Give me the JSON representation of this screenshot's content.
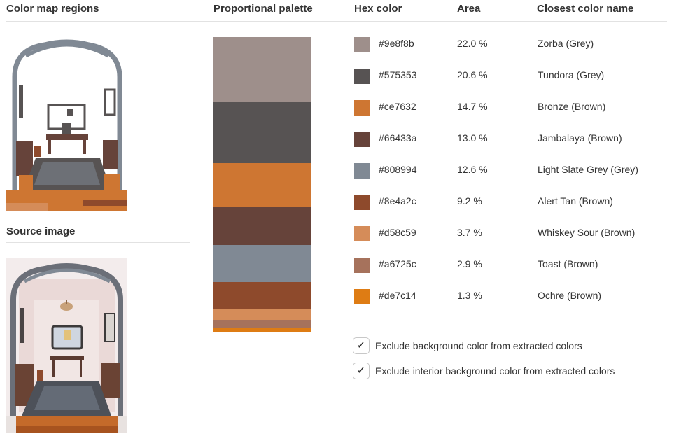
{
  "headers": {
    "color_map": "Color map regions",
    "source": "Source image",
    "palette": "Proportional palette",
    "hex": "Hex color",
    "area": "Area",
    "name": "Closest color name"
  },
  "colors": [
    {
      "hex": "#9e8f8b",
      "area": "22.0 %",
      "name": "Zorba (Grey)",
      "fraction": 0.22
    },
    {
      "hex": "#575353",
      "area": "20.6 %",
      "name": "Tundora (Grey)",
      "fraction": 0.206
    },
    {
      "hex": "#ce7632",
      "area": "14.7 %",
      "name": "Bronze (Brown)",
      "fraction": 0.147
    },
    {
      "hex": "#66433a",
      "area": "13.0 %",
      "name": "Jambalaya (Brown)",
      "fraction": 0.13
    },
    {
      "hex": "#808994",
      "area": "12.6 %",
      "name": "Light Slate Grey (Grey)",
      "fraction": 0.126
    },
    {
      "hex": "#8e4a2c",
      "area": "9.2 %",
      "name": "Alert Tan (Brown)",
      "fraction": 0.092
    },
    {
      "hex": "#d58c59",
      "area": "3.7 %",
      "name": "Whiskey Sour (Brown)",
      "fraction": 0.037
    },
    {
      "hex": "#a6725c",
      "area": "2.9 %",
      "name": "Toast (Brown)",
      "fraction": 0.029
    },
    {
      "hex": "#de7c14",
      "area": "1.3 %",
      "name": "Ochre (Brown)",
      "fraction": 0.013
    }
  ],
  "options": {
    "exclude_bg": {
      "label": "Exclude background color from extracted colors",
      "checked": true,
      "mark": "✓"
    },
    "exclude_interior_bg": {
      "label": "Exclude interior background color from extracted colors",
      "checked": true,
      "mark": "✓"
    }
  }
}
